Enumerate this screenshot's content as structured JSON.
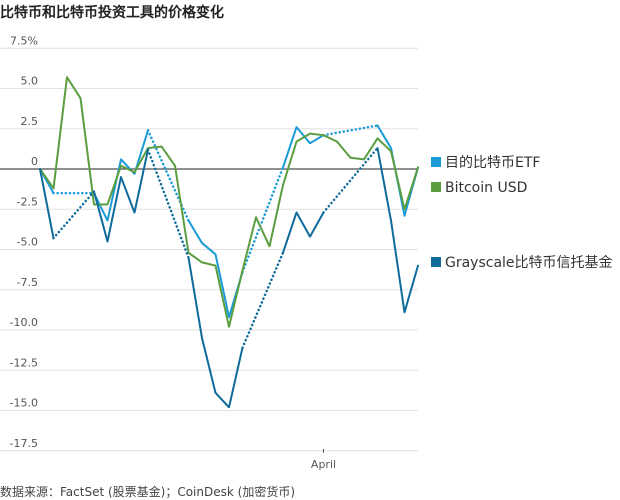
{
  "chart_data": {
    "type": "line",
    "title": "比特币和比特币投资工具的价格变化",
    "source": "数据来源：FactSet (股票基金)；CoinDesk (加密货币)",
    "ylim": [
      -17.5,
      7.5
    ],
    "yticks": [
      7.5,
      5.0,
      2.5,
      0,
      -2.5,
      -5.0,
      -7.5,
      -10.0,
      -12.5,
      -15.0,
      -17.5
    ],
    "ytick_labels": [
      "7.5%",
      "5.0",
      "2.5",
      "0",
      "-2.5",
      "-5.0",
      "-7.5",
      "-10.0",
      "-12.5",
      "-15.0",
      "-17.5"
    ],
    "xtick": {
      "label": "April",
      "index": 21
    },
    "grid": true,
    "legend_placement": "right",
    "note_missing": "null values are non-trading days, bridged with dotted lines",
    "series": [
      {
        "name": "目的比特币ETF",
        "color": "#1a9bd7",
        "values": [
          0,
          -1.5,
          null,
          null,
          -1.5,
          -3.2,
          0.6,
          -0.3,
          2.4,
          null,
          null,
          -3.2,
          -4.6,
          -5.3,
          -9.2,
          -6.4,
          null,
          null,
          0.1,
          2.6,
          1.6,
          2.1,
          null,
          null,
          null,
          2.7,
          1.3,
          -2.9,
          0.1
        ]
      },
      {
        "name": "Bitcoin USD",
        "color": "#5a9e3f",
        "values": [
          0,
          -1.2,
          5.7,
          4.4,
          -2.2,
          -2.2,
          0.2,
          -0.2,
          1.3,
          1.4,
          0.2,
          -5.2,
          -5.8,
          -6.0,
          -9.8,
          -6.3,
          -3.0,
          -4.8,
          -1.0,
          1.7,
          2.2,
          2.1,
          1.7,
          0.7,
          0.6,
          1.9,
          1.1,
          -2.5,
          0.1
        ]
      },
      {
        "name": "Grayscale比特币信托基金",
        "color": "#0e6b9c",
        "values": [
          0,
          -4.3,
          null,
          null,
          -1.4,
          -4.5,
          -0.5,
          -2.7,
          1.2,
          null,
          null,
          -5.5,
          -10.5,
          -13.9,
          -14.8,
          -11.1,
          null,
          null,
          -5.2,
          -2.7,
          -4.2,
          -2.7,
          null,
          null,
          null,
          1.3,
          -3.2,
          -8.9,
          -6.0
        ]
      }
    ]
  }
}
